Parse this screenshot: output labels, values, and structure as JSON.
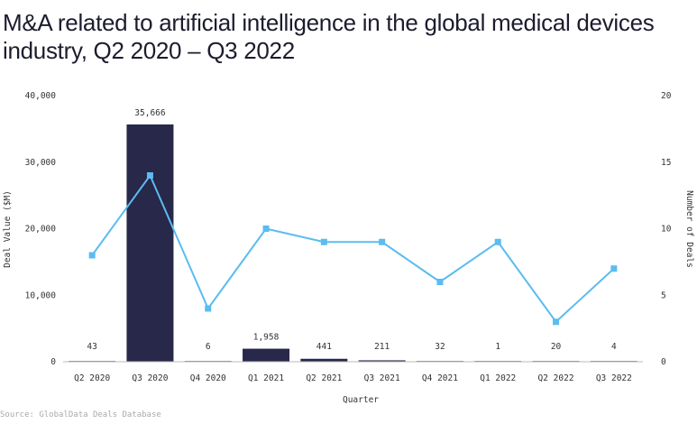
{
  "title": "M&A related to artificial intelligence in the global medical devices industry, Q2 2020 – Q3 2022",
  "source": "Source: GlobalData Deals Database",
  "colors": {
    "bar": "#27284a",
    "line": "#5bbcf0",
    "axis": "#bbbbbb",
    "text": "#333333"
  },
  "chart_data": {
    "type": "bar+line",
    "title": "M&A related to artificial intelligence in the global medical devices industry, Q2 2020 – Q3 2022",
    "xlabel": "Quarter",
    "ylabel": "Deal Value ($M)",
    "y2label": "Number of Deals",
    "categories": [
      "Q2 2020",
      "Q3 2020",
      "Q4 2020",
      "Q1 2021",
      "Q2 2021",
      "Q3 2021",
      "Q4 2021",
      "Q1 2022",
      "Q2 2022",
      "Q3 2022"
    ],
    "series": [
      {
        "name": "Deal Value ($M)",
        "type": "bar",
        "axis": "left",
        "values": [
          43,
          35666,
          6,
          1958,
          441,
          211,
          32,
          1,
          20,
          4
        ],
        "labels": [
          "43",
          "35,666",
          "6",
          "1,958",
          "441",
          "211",
          "32",
          "1",
          "20",
          "4"
        ]
      },
      {
        "name": "Number of Deals",
        "type": "line",
        "axis": "right",
        "values": [
          8,
          14,
          4,
          10,
          9,
          9,
          6,
          9,
          3,
          7
        ]
      }
    ],
    "ylim": [
      0,
      40000
    ],
    "y2lim": [
      0,
      20
    ],
    "yticks": [
      0,
      10000,
      20000,
      30000,
      40000
    ],
    "ytick_labels": [
      "0",
      "10,000",
      "20,000",
      "30,000",
      "40,000"
    ],
    "y2ticks": [
      0,
      5,
      10,
      15,
      20
    ],
    "y2tick_labels": [
      "0",
      "5",
      "10",
      "15",
      "20"
    ],
    "grid": false,
    "legend": "none"
  }
}
